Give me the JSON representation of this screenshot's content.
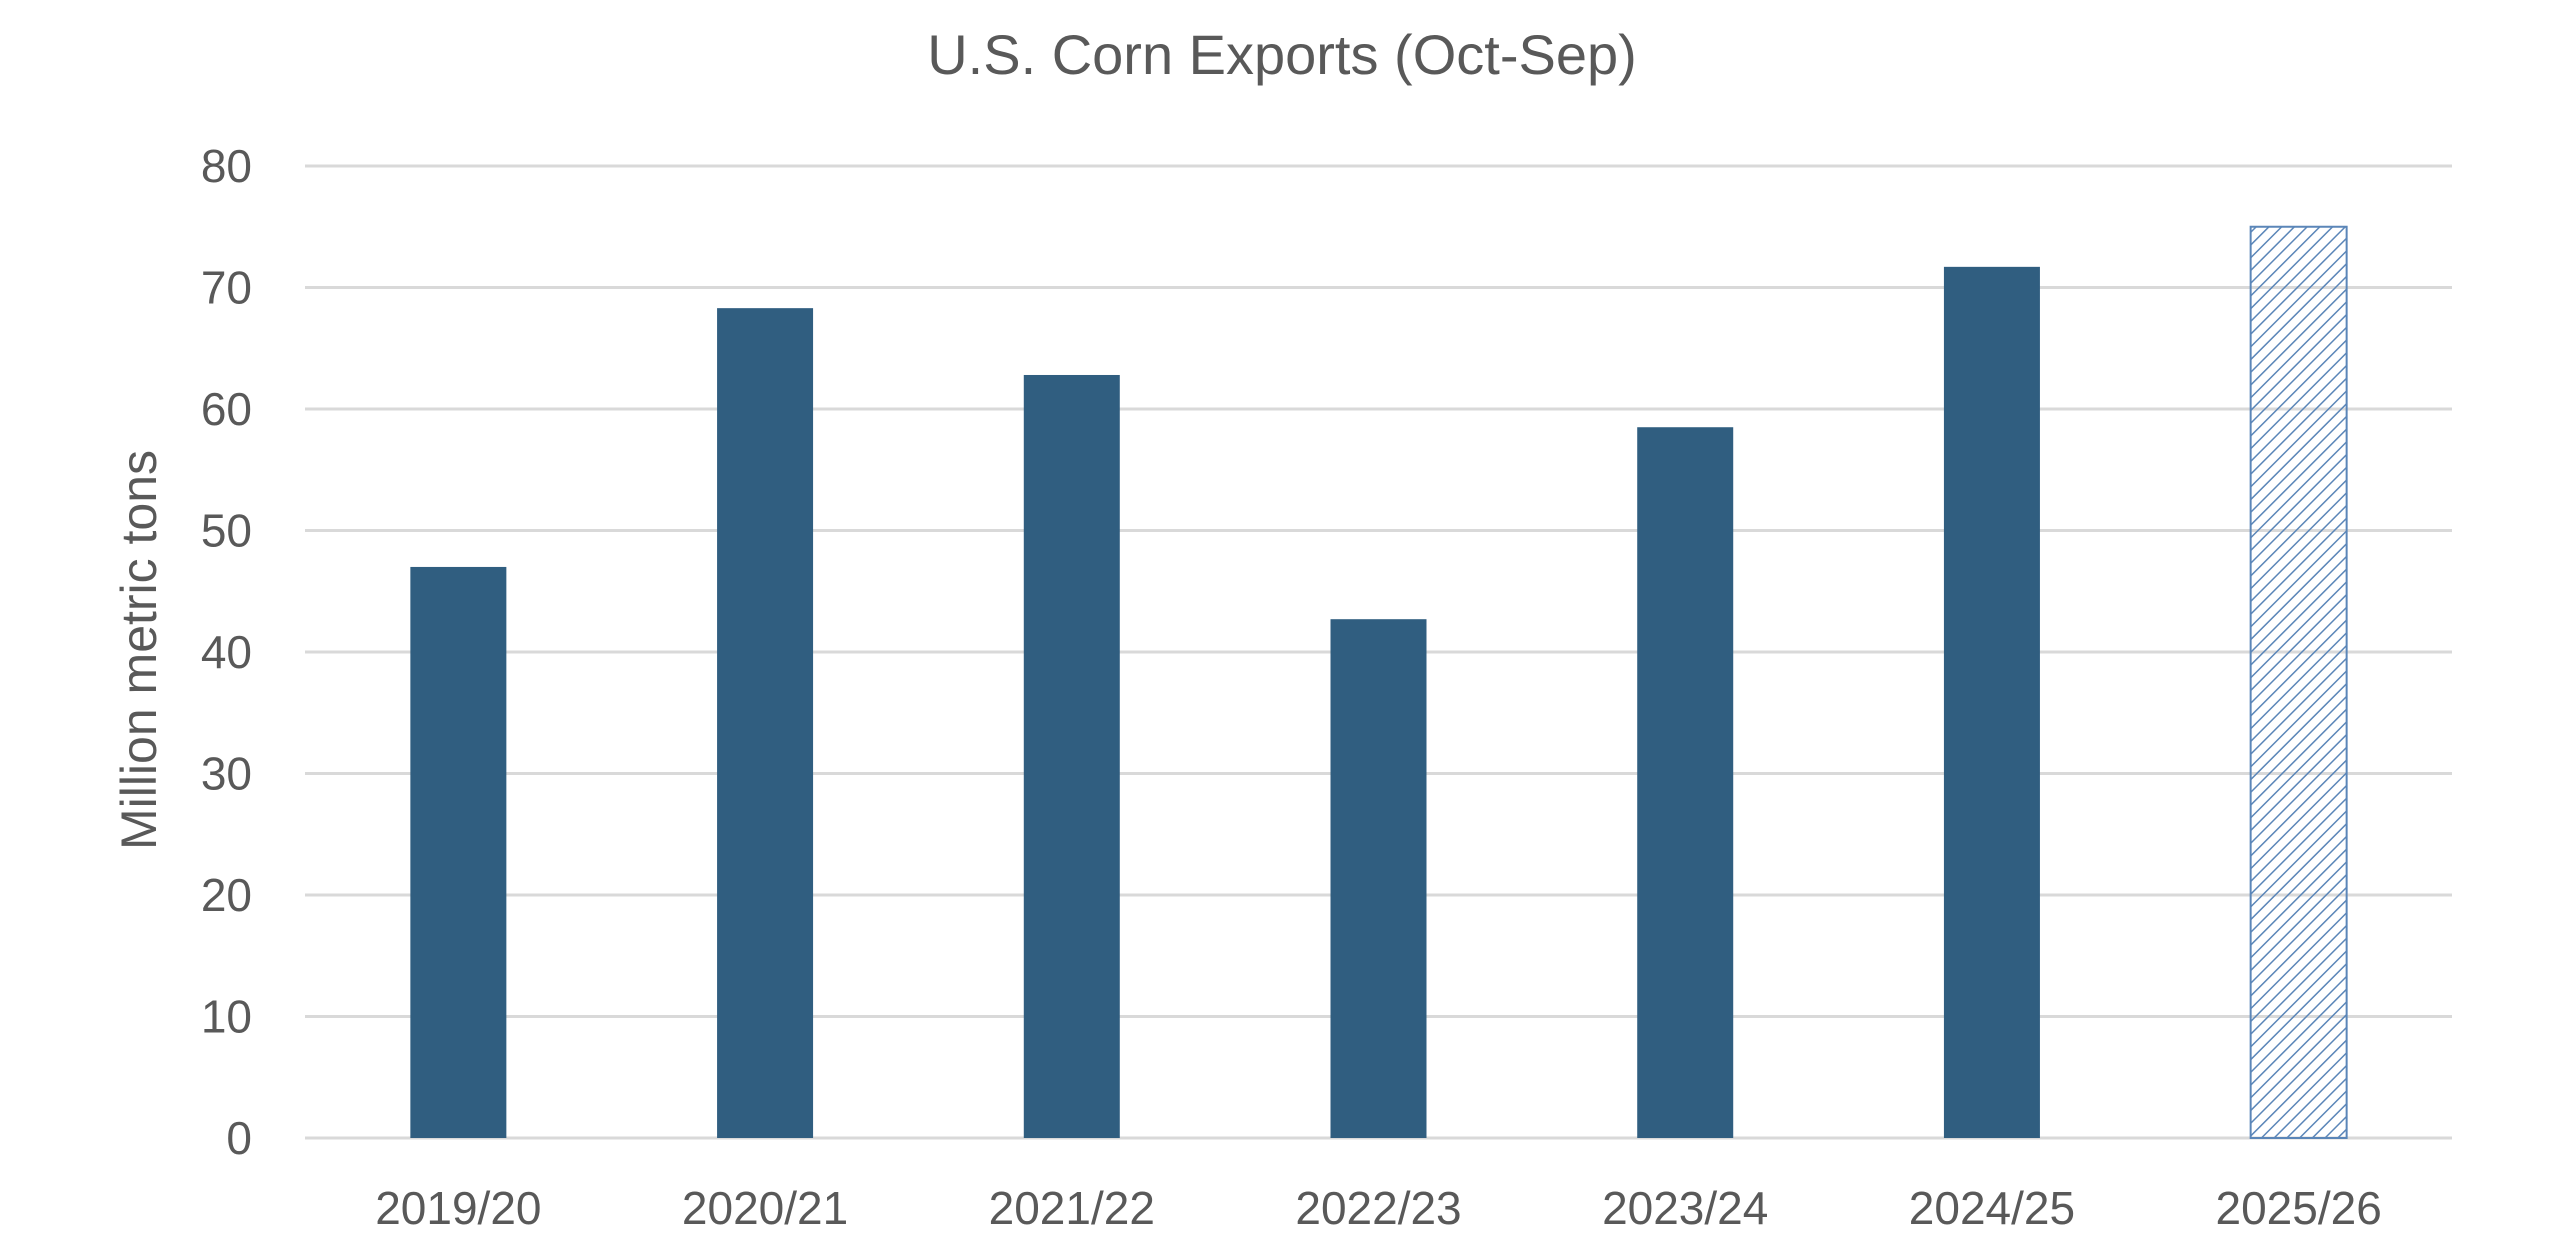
{
  "chart_data": {
    "type": "bar",
    "title": "U.S. Corn Exports (Oct-Sep)",
    "xlabel": "",
    "ylabel": "Million metric tons",
    "categories": [
      "2019/20",
      "2020/21",
      "2021/22",
      "2022/23",
      "2023/24",
      "2024/25",
      "2025/26"
    ],
    "values": [
      47.0,
      68.3,
      62.8,
      42.7,
      58.5,
      71.7,
      75.0
    ],
    "projected": [
      false,
      false,
      false,
      false,
      false,
      false,
      true
    ],
    "ylim": [
      0,
      80
    ],
    "yticks": [
      "0",
      "10",
      "20",
      "30",
      "40",
      "50",
      "60",
      "70",
      "80"
    ],
    "grid": true,
    "legend": "none",
    "colors": {
      "bar": "#305E80",
      "projected_pattern": "#5B86B8",
      "grid": "#D9D9D9",
      "text": "#595959"
    }
  }
}
